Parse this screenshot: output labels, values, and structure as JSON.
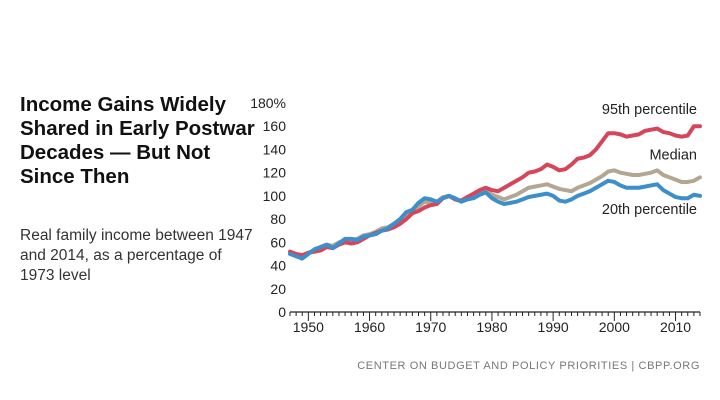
{
  "title": "Income Gains Widely Shared in Early Postwar Decades — But Not Since Then",
  "subtitle": "Real family income between 1947 and 2014, as a percentage of 1973 level",
  "footer": "CENTER ON BUDGET AND POLICY PRIORITIES | CBPP.ORG",
  "chart_data": {
    "type": "line",
    "title": "Income Gains Widely Shared in Early Postwar Decades — But Not Since Then",
    "subtitle": "Real family income between 1947 and 2014, as a percentage of 1973 level",
    "xlabel": "",
    "ylabel": "",
    "xlim": [
      1947,
      2014
    ],
    "ylim": [
      0,
      180
    ],
    "x_ticks": [
      1950,
      1960,
      1970,
      1980,
      1990,
      2000,
      2010
    ],
    "y_ticks": [
      0,
      20,
      40,
      60,
      80,
      100,
      120,
      140,
      160,
      180
    ],
    "y_tick_labels": [
      "0",
      "20",
      "40",
      "60",
      "80",
      "100",
      "120",
      "140",
      "160",
      "180%"
    ],
    "grid": false,
    "legend": "direct-labels-at-line-ends",
    "x": [
      1947,
      1948,
      1949,
      1950,
      1951,
      1952,
      1953,
      1954,
      1955,
      1956,
      1957,
      1958,
      1959,
      1960,
      1961,
      1962,
      1963,
      1964,
      1965,
      1966,
      1967,
      1968,
      1969,
      1970,
      1971,
      1972,
      1973,
      1974,
      1975,
      1976,
      1977,
      1978,
      1979,
      1980,
      1981,
      1982,
      1983,
      1984,
      1985,
      1986,
      1987,
      1988,
      1989,
      1990,
      1991,
      1992,
      1993,
      1994,
      1995,
      1996,
      1997,
      1998,
      1999,
      2000,
      2001,
      2002,
      2003,
      2004,
      2005,
      2006,
      2007,
      2008,
      2009,
      2010,
      2011,
      2012,
      2013,
      2014
    ],
    "series": [
      {
        "name": "95th percentile",
        "color": "#d6465a",
        "values": [
          52,
          50,
          49,
          51,
          52,
          53,
          56,
          55,
          58,
          60,
          59,
          60,
          63,
          66,
          68,
          70,
          71,
          73,
          76,
          80,
          85,
          87,
          90,
          92,
          93,
          98,
          100,
          97,
          96,
          99,
          102,
          105,
          107,
          105,
          104,
          107,
          110,
          113,
          116,
          120,
          121,
          123,
          127,
          125,
          122,
          123,
          127,
          132,
          133,
          135,
          140,
          147,
          154,
          154,
          153,
          151,
          152,
          153,
          156,
          157,
          158,
          155,
          154,
          152,
          151,
          152,
          160,
          160
        ]
      },
      {
        "name": "Median",
        "color": "#b3a692",
        "values": [
          50,
          49,
          48,
          51,
          53,
          55,
          58,
          57,
          60,
          62,
          62,
          63,
          66,
          67,
          69,
          72,
          73,
          76,
          79,
          84,
          88,
          91,
          95,
          94,
          95,
          99,
          100,
          97,
          95,
          98,
          100,
          103,
          105,
          101,
          99,
          97,
          99,
          101,
          104,
          107,
          108,
          109,
          110,
          108,
          106,
          105,
          104,
          107,
          109,
          111,
          114,
          117,
          121,
          122,
          120,
          119,
          118,
          118,
          119,
          120,
          122,
          118,
          116,
          114,
          112,
          112,
          113,
          116
        ]
      },
      {
        "name": "20th percentile",
        "color": "#3b8fcb",
        "values": [
          50,
          48,
          46,
          50,
          54,
          56,
          58,
          55,
          59,
          63,
          63,
          62,
          65,
          66,
          67,
          70,
          72,
          76,
          80,
          86,
          88,
          94,
          98,
          97,
          95,
          98,
          100,
          98,
          95,
          97,
          98,
          101,
          103,
          98,
          95,
          93,
          94,
          95,
          97,
          99,
          100,
          101,
          102,
          100,
          96,
          95,
          97,
          100,
          102,
          104,
          107,
          110,
          113,
          112,
          109,
          107,
          107,
          107,
          108,
          109,
          110,
          105,
          102,
          99,
          98,
          98,
          101,
          100
        ]
      }
    ]
  }
}
